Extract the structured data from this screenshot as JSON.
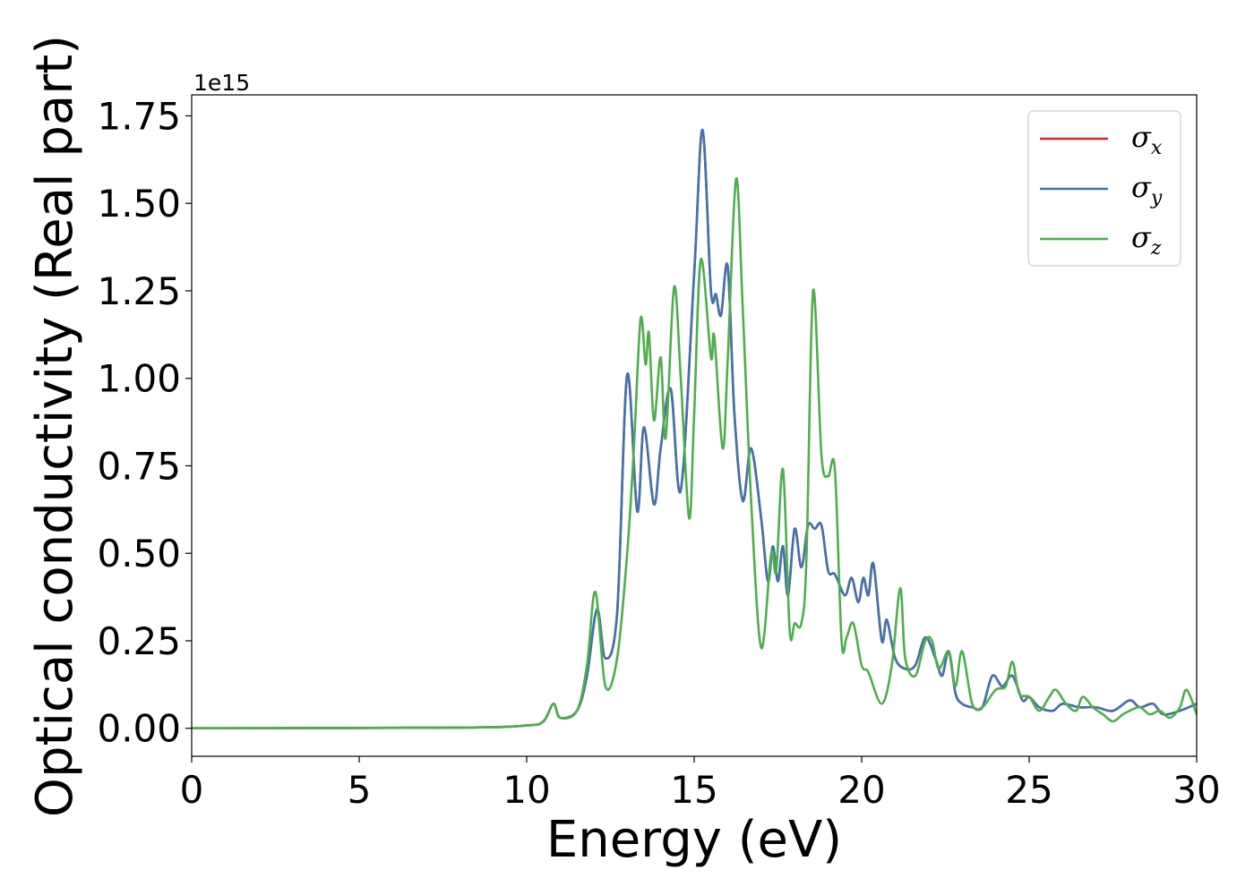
{
  "chart_data": {
    "type": "line",
    "xlabel": "Energy (eV)",
    "ylabel": "Optical conductivity (Real part)",
    "y_offset_label": "1e15",
    "xlim": [
      0,
      30
    ],
    "ylim": [
      -0.08,
      1.81
    ],
    "y_scale": 1000000000000000.0,
    "grid": false,
    "legend_position": "top-right",
    "x_ticks": [
      "0",
      "5",
      "10",
      "15",
      "20",
      "25",
      "30"
    ],
    "x_tick_values": [
      0,
      5,
      10,
      15,
      20,
      25,
      30
    ],
    "y_ticks": [
      "0.00",
      "0.25",
      "0.50",
      "0.75",
      "1.00",
      "1.25",
      "1.50",
      "1.75"
    ],
    "y_tick_values": [
      0,
      0.25,
      0.5,
      0.75,
      1.0,
      1.25,
      1.5,
      1.75
    ],
    "series": [
      {
        "name": "σx",
        "symbol": "σ",
        "subscript": "x",
        "color": "#d62728",
        "x": [
          0,
          8,
          10,
          10.5,
          10.8,
          11.0,
          11.5,
          11.8,
          12.1,
          12.35,
          12.7,
          13.0,
          13.3,
          13.5,
          13.8,
          14.0,
          14.3,
          14.6,
          15.0,
          15.25,
          15.5,
          15.65,
          15.8,
          16.0,
          16.2,
          16.45,
          16.7,
          17.0,
          17.2,
          17.35,
          17.5,
          17.65,
          17.8,
          18.0,
          18.2,
          18.4,
          18.6,
          18.8,
          19.0,
          19.2,
          19.5,
          19.7,
          19.9,
          20.05,
          20.2,
          20.35,
          20.6,
          20.75,
          21.0,
          21.3,
          21.6,
          21.9,
          22.2,
          22.4,
          22.6,
          22.8,
          23.0,
          23.3,
          23.6,
          23.9,
          24.2,
          24.5,
          24.8,
          25.0,
          25.3,
          25.7,
          26.0,
          26.5,
          27.0,
          27.5,
          28.0,
          28.3,
          28.7,
          29.0,
          29.5,
          30
        ],
        "values": [
          0.0,
          0.002,
          0.008,
          0.02,
          0.07,
          0.03,
          0.05,
          0.15,
          0.34,
          0.2,
          0.33,
          1.01,
          0.62,
          0.86,
          0.64,
          0.8,
          0.97,
          0.68,
          1.3,
          1.71,
          1.25,
          1.24,
          1.18,
          1.32,
          0.9,
          0.65,
          0.8,
          0.6,
          0.42,
          0.52,
          0.42,
          0.52,
          0.38,
          0.57,
          0.46,
          0.58,
          0.57,
          0.58,
          0.45,
          0.44,
          0.38,
          0.43,
          0.36,
          0.43,
          0.38,
          0.47,
          0.25,
          0.31,
          0.2,
          0.17,
          0.18,
          0.26,
          0.2,
          0.15,
          0.22,
          0.1,
          0.07,
          0.06,
          0.06,
          0.15,
          0.12,
          0.15,
          0.08,
          0.09,
          0.06,
          0.05,
          0.07,
          0.06,
          0.06,
          0.05,
          0.08,
          0.06,
          0.07,
          0.04,
          0.05,
          0.07
        ]
      },
      {
        "name": "σy",
        "symbol": "σ",
        "subscript": "y",
        "color": "#3f74ad",
        "x": [
          0,
          8,
          10,
          10.5,
          10.8,
          11.0,
          11.5,
          11.8,
          12.1,
          12.35,
          12.7,
          13.0,
          13.3,
          13.5,
          13.8,
          14.0,
          14.3,
          14.6,
          15.0,
          15.25,
          15.5,
          15.65,
          15.8,
          16.0,
          16.2,
          16.45,
          16.7,
          17.0,
          17.2,
          17.35,
          17.5,
          17.65,
          17.8,
          18.0,
          18.2,
          18.4,
          18.6,
          18.8,
          19.0,
          19.2,
          19.5,
          19.7,
          19.9,
          20.05,
          20.2,
          20.35,
          20.6,
          20.75,
          21.0,
          21.3,
          21.6,
          21.9,
          22.2,
          22.4,
          22.6,
          22.8,
          23.0,
          23.3,
          23.6,
          23.9,
          24.2,
          24.5,
          24.8,
          25.0,
          25.3,
          25.7,
          26.0,
          26.5,
          27.0,
          27.5,
          28.0,
          28.3,
          28.7,
          29.0,
          29.5,
          30
        ],
        "values": [
          0.0,
          0.002,
          0.008,
          0.02,
          0.07,
          0.03,
          0.05,
          0.15,
          0.34,
          0.2,
          0.33,
          1.01,
          0.62,
          0.86,
          0.64,
          0.8,
          0.97,
          0.68,
          1.3,
          1.71,
          1.25,
          1.24,
          1.18,
          1.32,
          0.9,
          0.65,
          0.8,
          0.6,
          0.42,
          0.52,
          0.42,
          0.52,
          0.38,
          0.57,
          0.46,
          0.58,
          0.57,
          0.58,
          0.45,
          0.44,
          0.38,
          0.43,
          0.36,
          0.43,
          0.38,
          0.47,
          0.25,
          0.31,
          0.2,
          0.17,
          0.18,
          0.26,
          0.2,
          0.15,
          0.22,
          0.1,
          0.07,
          0.06,
          0.06,
          0.15,
          0.12,
          0.15,
          0.08,
          0.09,
          0.06,
          0.05,
          0.07,
          0.06,
          0.06,
          0.05,
          0.08,
          0.06,
          0.07,
          0.04,
          0.05,
          0.07
        ]
      },
      {
        "name": "σz",
        "symbol": "σ",
        "subscript": "z",
        "color": "#4daf4a",
        "x": [
          0,
          8,
          10,
          10.5,
          10.8,
          11.0,
          11.5,
          11.8,
          12.05,
          12.35,
          12.7,
          13.0,
          13.2,
          13.4,
          13.55,
          13.65,
          13.8,
          14.0,
          14.15,
          14.4,
          14.6,
          14.85,
          15.0,
          15.2,
          15.5,
          15.6,
          15.85,
          16.0,
          16.25,
          16.45,
          16.7,
          17.0,
          17.3,
          17.45,
          17.65,
          17.85,
          18.0,
          18.2,
          18.35,
          18.55,
          18.8,
          19.0,
          19.2,
          19.4,
          19.55,
          19.75,
          20.0,
          20.2,
          20.6,
          20.9,
          21.15,
          21.3,
          21.6,
          21.9,
          22.1,
          22.3,
          22.6,
          22.8,
          23.0,
          23.3,
          23.6,
          24.0,
          24.3,
          24.5,
          24.7,
          25.0,
          25.3,
          25.6,
          25.8,
          26.1,
          26.4,
          26.6,
          26.9,
          27.2,
          27.5,
          27.8,
          28.0,
          28.3,
          28.6,
          28.9,
          29.2,
          29.5,
          29.7,
          30
        ],
        "values": [
          0.0,
          0.002,
          0.008,
          0.02,
          0.07,
          0.03,
          0.05,
          0.18,
          0.39,
          0.12,
          0.2,
          0.5,
          0.8,
          1.17,
          1.04,
          1.13,
          0.88,
          1.06,
          0.83,
          1.26,
          1.0,
          0.6,
          0.9,
          1.34,
          1.06,
          1.12,
          0.8,
          1.05,
          1.57,
          1.2,
          0.65,
          0.23,
          0.5,
          0.45,
          0.74,
          0.28,
          0.3,
          0.3,
          0.48,
          1.25,
          0.78,
          0.72,
          0.74,
          0.25,
          0.26,
          0.3,
          0.18,
          0.16,
          0.07,
          0.18,
          0.4,
          0.2,
          0.15,
          0.25,
          0.25,
          0.17,
          0.22,
          0.12,
          0.22,
          0.07,
          0.06,
          0.11,
          0.12,
          0.19,
          0.1,
          0.09,
          0.05,
          0.09,
          0.11,
          0.07,
          0.05,
          0.09,
          0.06,
          0.04,
          0.02,
          0.04,
          0.05,
          0.06,
          0.04,
          0.05,
          0.03,
          0.06,
          0.11,
          0.04
        ]
      }
    ]
  }
}
